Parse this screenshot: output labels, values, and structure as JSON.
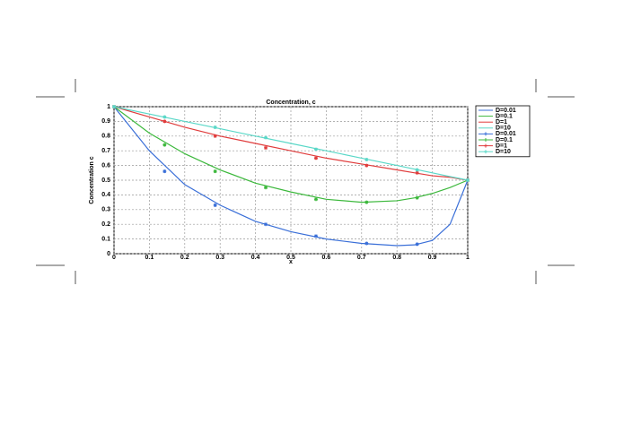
{
  "chart_data": {
    "type": "line",
    "title": "Concentration, c",
    "x_label": "x",
    "y_label": "Concentration c",
    "xlim": [
      0,
      1
    ],
    "ylim": [
      0,
      1
    ],
    "xticks": [
      0,
      0.1,
      0.2,
      0.3,
      0.4,
      0.5,
      0.6,
      0.7,
      0.8,
      0.9,
      1
    ],
    "yticks": [
      0,
      0.1,
      0.2,
      0.3,
      0.4,
      0.5,
      0.6,
      0.7,
      0.8,
      0.9,
      1
    ],
    "grid": true,
    "legend": "outside-right",
    "series": [
      {
        "name": "D=0.01",
        "color": "#3a6fd8",
        "marker": false,
        "x": [
          0,
          0.1,
          0.2,
          0.3,
          0.4,
          0.5,
          0.6,
          0.7,
          0.8,
          0.85,
          0.9,
          0.95,
          1
        ],
        "values": [
          1,
          0.7,
          0.47,
          0.33,
          0.22,
          0.15,
          0.1,
          0.07,
          0.055,
          0.06,
          0.09,
          0.2,
          0.5
        ]
      },
      {
        "name": "D=0.1",
        "color": "#3cb83c",
        "marker": false,
        "x": [
          0,
          0.1,
          0.2,
          0.3,
          0.4,
          0.5,
          0.6,
          0.7,
          0.8,
          0.85,
          0.9,
          0.95,
          1
        ],
        "values": [
          1,
          0.82,
          0.68,
          0.57,
          0.48,
          0.42,
          0.37,
          0.35,
          0.36,
          0.38,
          0.41,
          0.45,
          0.5
        ]
      },
      {
        "name": "D=1",
        "color": "#e03c3c",
        "marker": false,
        "x": [
          0,
          0.1,
          0.2,
          0.3,
          0.4,
          0.5,
          0.6,
          0.7,
          0.8,
          0.85,
          0.9,
          0.95,
          1
        ],
        "values": [
          1,
          0.93,
          0.86,
          0.8,
          0.75,
          0.7,
          0.65,
          0.61,
          0.57,
          0.55,
          0.53,
          0.52,
          0.5
        ]
      },
      {
        "name": "D=10",
        "color": "#5ad8c8",
        "marker": false,
        "x": [
          0,
          0.1,
          0.2,
          0.3,
          0.4,
          0.5,
          0.6,
          0.7,
          0.8,
          0.85,
          0.9,
          0.95,
          1
        ],
        "values": [
          1,
          0.95,
          0.9,
          0.85,
          0.8,
          0.75,
          0.7,
          0.65,
          0.6,
          0.575,
          0.55,
          0.525,
          0.5
        ]
      },
      {
        "name": "D=0.01",
        "color": "#3a6fd8",
        "marker": true,
        "x": [
          0,
          0.143,
          0.286,
          0.429,
          0.571,
          0.714,
          0.857,
          1
        ],
        "values": [
          1,
          0.56,
          0.33,
          0.2,
          0.12,
          0.07,
          0.065,
          0.5
        ]
      },
      {
        "name": "D=0.1",
        "color": "#3cb83c",
        "marker": true,
        "x": [
          0,
          0.143,
          0.286,
          0.429,
          0.571,
          0.714,
          0.857,
          1
        ],
        "values": [
          1,
          0.74,
          0.56,
          0.45,
          0.37,
          0.35,
          0.38,
          0.5
        ]
      },
      {
        "name": "D=1",
        "color": "#e03c3c",
        "marker": true,
        "x": [
          0,
          0.143,
          0.286,
          0.429,
          0.571,
          0.714,
          0.857,
          1
        ],
        "values": [
          1,
          0.9,
          0.8,
          0.72,
          0.65,
          0.6,
          0.55,
          0.5
        ]
      },
      {
        "name": "D=10",
        "color": "#5ad8c8",
        "marker": true,
        "x": [
          0,
          0.143,
          0.286,
          0.429,
          0.571,
          0.714,
          0.857,
          1
        ],
        "values": [
          1,
          0.93,
          0.86,
          0.79,
          0.71,
          0.64,
          0.57,
          0.5
        ]
      }
    ]
  }
}
